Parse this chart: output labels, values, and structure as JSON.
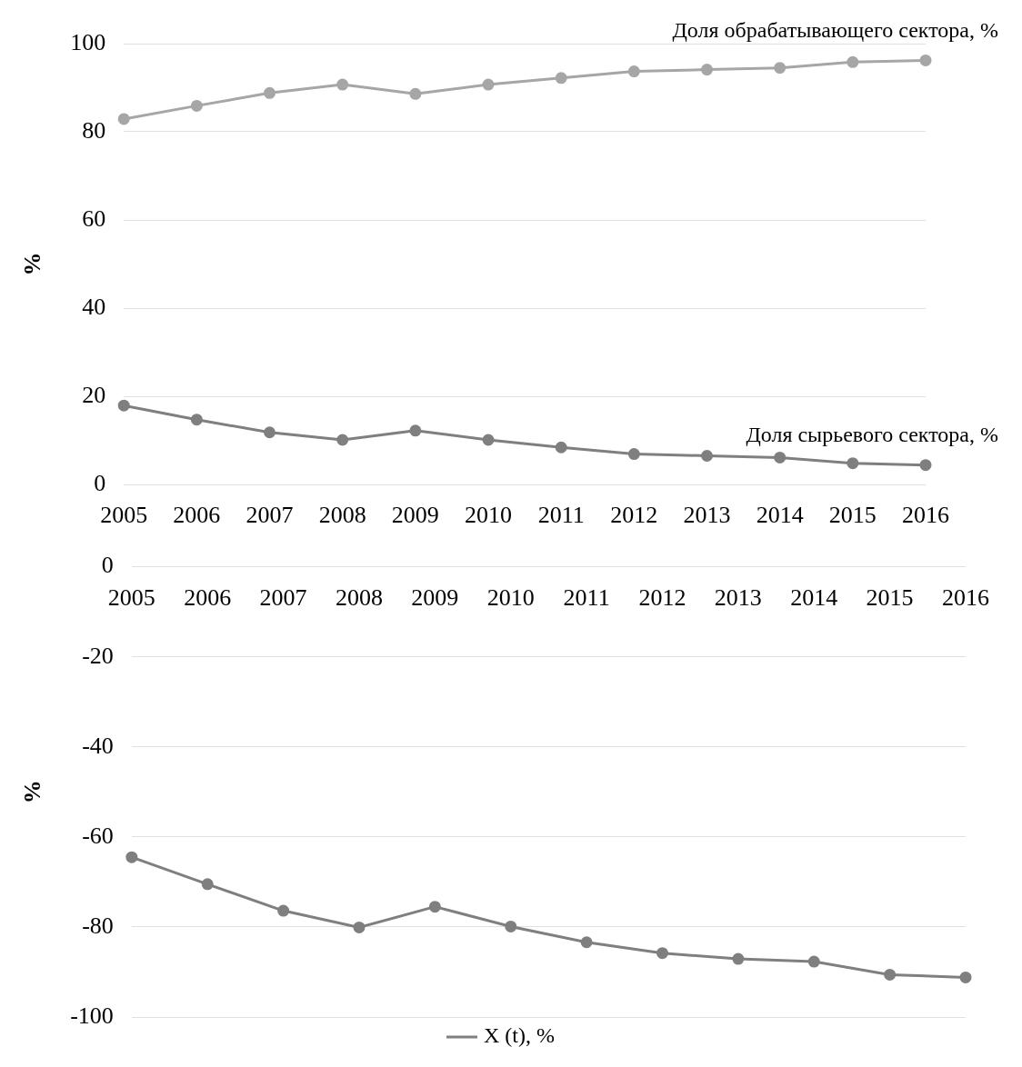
{
  "chart_data": [
    {
      "type": "line",
      "categories": [
        "2005",
        "2006",
        "2007",
        "2008",
        "2009",
        "2010",
        "2011",
        "2012",
        "2013",
        "2014",
        "2015",
        "2016"
      ],
      "ylabel": "%",
      "ylim": [
        0,
        100
      ],
      "yticks": [
        0,
        20,
        40,
        60,
        80,
        100
      ],
      "grid": "y",
      "legend": false,
      "marker": "circle",
      "line_style": "solid",
      "series": [
        {
          "name": "Доля обрабатывающего сектора, %",
          "color": "#a6a6a6",
          "values": [
            82.9,
            85.9,
            88.8,
            90.7,
            88.6,
            90.7,
            92.2,
            93.7,
            94.1,
            94.5,
            95.8,
            96.2
          ]
        },
        {
          "name": "Доля сырьевого сектора, %",
          "color": "#7f7f7f",
          "values": [
            17.9,
            14.7,
            11.8,
            10.1,
            12.2,
            10.1,
            8.4,
            6.9,
            6.5,
            6.1,
            4.8,
            4.4
          ]
        }
      ]
    },
    {
      "type": "line",
      "categories": [
        "2005",
        "2006",
        "2007",
        "2008",
        "2009",
        "2010",
        "2011",
        "2012",
        "2013",
        "2014",
        "2015",
        "2016"
      ],
      "ylabel": "%",
      "ylim": [
        -100,
        0
      ],
      "yticks": [
        -100,
        -80,
        -60,
        -40,
        -20,
        0
      ],
      "grid": "y",
      "legend": "bottom",
      "marker": "circle",
      "line_style": "solid",
      "series": [
        {
          "name": "X (t), %",
          "color": "#7f7f7f",
          "values": [
            -64.5,
            -70.5,
            -76.4,
            -80.1,
            -75.5,
            -79.9,
            -83.4,
            -85.8,
            -87.1,
            -87.7,
            -90.6,
            -91.2
          ]
        }
      ]
    }
  ]
}
